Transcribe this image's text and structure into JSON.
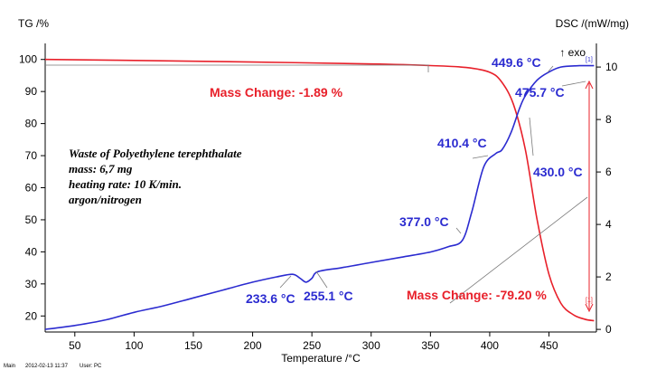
{
  "chart_data": {
    "type": "line",
    "xlabel": "Temperature /°C",
    "ylabel_left": "TG /%",
    "ylabel_right": "DSC /(mW/mg)",
    "exo_label": "↑ exo",
    "xlim": [
      25,
      490
    ],
    "ylim_left": [
      15,
      105
    ],
    "ylim_right": [
      -0.1,
      10.9
    ],
    "x_ticks": [
      50,
      100,
      150,
      200,
      250,
      300,
      350,
      400,
      450
    ],
    "y_ticks_left": [
      20,
      30,
      40,
      50,
      60,
      70,
      80,
      90,
      100
    ],
    "y_ticks_right": [
      0,
      2,
      4,
      6,
      8,
      10
    ],
    "grid": false,
    "colors": {
      "tg": "#e8202a",
      "dsc": "#2b2bd0",
      "axes": "#000000"
    },
    "series": [
      {
        "axis": "left",
        "color": "#e8202a",
        "x": [
          25,
          100,
          200,
          300,
          350,
          380,
          400,
          410,
          420,
          430,
          440,
          450,
          460,
          470,
          480,
          488
        ],
        "y": [
          100.0,
          99.7,
          99.2,
          98.6,
          98.1,
          97.5,
          96.0,
          93.0,
          86.0,
          72.0,
          50.0,
          33.0,
          24.0,
          20.5,
          19.0,
          18.5
        ]
      },
      {
        "axis": "right",
        "color": "#2b2bd0",
        "x": [
          25,
          50,
          75,
          100,
          125,
          150,
          175,
          200,
          220,
          233.6,
          240,
          245,
          250,
          255.1,
          275,
          300,
          325,
          350,
          365,
          377,
          385,
          395,
          405,
          410.4,
          418,
          425,
          430,
          440,
          449.6,
          460,
          475.7,
          488
        ],
        "y": [
          0.0,
          0.15,
          0.35,
          0.65,
          0.9,
          1.2,
          1.5,
          1.8,
          2.0,
          2.1,
          1.95,
          1.8,
          1.95,
          2.2,
          2.35,
          2.55,
          2.75,
          2.95,
          3.15,
          3.4,
          4.5,
          6.2,
          6.7,
          6.85,
          7.5,
          8.4,
          8.9,
          9.5,
          9.8,
          10.0,
          10.05,
          10.05
        ]
      }
    ],
    "annotations": {
      "tg_mass1": "Mass Change: -1.89 %",
      "tg_mass2": "Mass Change: -79.20 %",
      "t233": "233.6 °C",
      "t255": "255.1 °C",
      "t377": "377.0 °C",
      "t410": "410.4 °C",
      "t430": "430.0 °C",
      "t449": "449.6 °C",
      "t475": "475.7 °C",
      "bracket_top": "[1]",
      "bracket_bottom": "[1]"
    },
    "sample_info": [
      "Waste of Polyethylene terephthalate",
      "mass: 6,7 mg",
      "heating rate: 10 K/min.",
      "argon/nitrogen"
    ]
  },
  "footer": {
    "left": "Main",
    "timestamp": "2012-02-13 11:37",
    "user": "User: PC"
  }
}
